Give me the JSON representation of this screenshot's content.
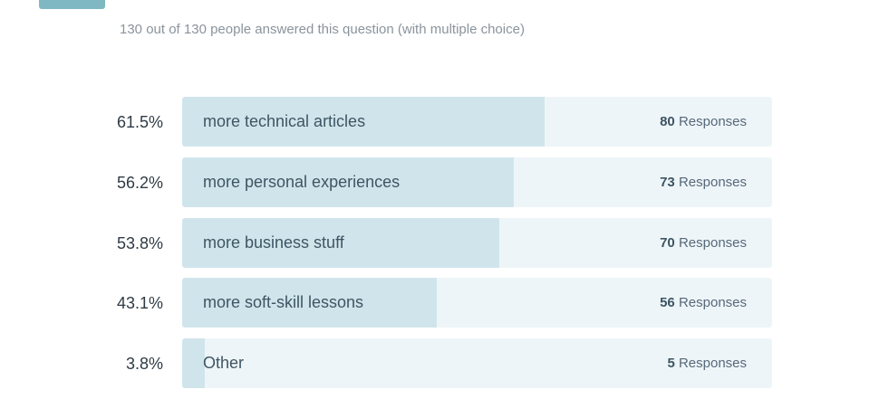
{
  "question": {
    "title": "",
    "subtitle": "130 out of 130 people answered this question (with multiple choice)"
  },
  "responses_word": "Responses",
  "chart_data": {
    "type": "bar",
    "orientation": "horizontal",
    "total": 130,
    "categories": [
      "more technical articles",
      "more personal experiences",
      "more business stuff",
      "more soft-skill lessons",
      "Other"
    ],
    "percent_labels": [
      "61.5%",
      "56.2%",
      "53.8%",
      "43.1%",
      "3.8%"
    ],
    "values": [
      80,
      73,
      70,
      56,
      5
    ],
    "percents": [
      61.5,
      56.2,
      53.8,
      43.1,
      3.8
    ],
    "xlim": [
      0,
      100
    ],
    "colors": {
      "fill": "#d0e5eb",
      "track": "#eef5f8",
      "badge": "#7fb8c2"
    }
  }
}
